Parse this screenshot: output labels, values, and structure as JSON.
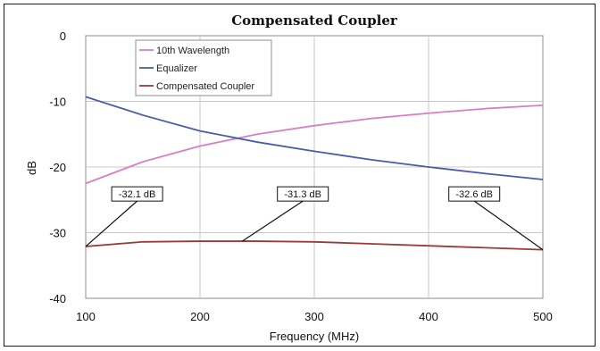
{
  "chart_data": {
    "type": "line",
    "title": "Compensated Coupler",
    "xlabel": "Frequency (MHz)",
    "ylabel": "dB",
    "xlim": [
      100,
      500
    ],
    "ylim": [
      -40,
      0
    ],
    "xticks": [
      100,
      200,
      300,
      400,
      500
    ],
    "yticks": [
      0,
      -10,
      -20,
      -30,
      -40
    ],
    "grid": true,
    "legend_position": "top-left",
    "series": [
      {
        "name": "10th Wavelength",
        "color": "#d67fc8",
        "x": [
          100,
          150,
          200,
          250,
          300,
          350,
          400,
          450,
          500
        ],
        "y": [
          -22.5,
          -19.2,
          -16.8,
          -15.0,
          -13.7,
          -12.6,
          -11.8,
          -11.1,
          -10.6
        ]
      },
      {
        "name": "Equalizer",
        "color": "#4a5ca8",
        "x": [
          100,
          150,
          200,
          250,
          300,
          350,
          400,
          450,
          500
        ],
        "y": [
          -9.3,
          -12.1,
          -14.5,
          -16.2,
          -17.6,
          -18.9,
          -20.0,
          -21.0,
          -21.9
        ]
      },
      {
        "name": "Compensated Coupler",
        "color": "#9b3a3a",
        "x": [
          100,
          150,
          200,
          250,
          300,
          350,
          400,
          450,
          500
        ],
        "y": [
          -32.1,
          -31.4,
          -31.3,
          -31.3,
          -31.4,
          -31.7,
          -32.0,
          -32.3,
          -32.6
        ]
      }
    ],
    "annotations": [
      {
        "text": "-32.1 dB",
        "x": 100,
        "y": -32.1,
        "label_x": 145,
        "label_y": -24.1
      },
      {
        "text": "-31.3 dB",
        "x": 237,
        "y": -31.3,
        "label_x": 290,
        "label_y": -24.1
      },
      {
        "text": "-32.6 dB",
        "x": 500,
        "y": -32.6,
        "label_x": 440,
        "label_y": -24.1
      }
    ]
  }
}
